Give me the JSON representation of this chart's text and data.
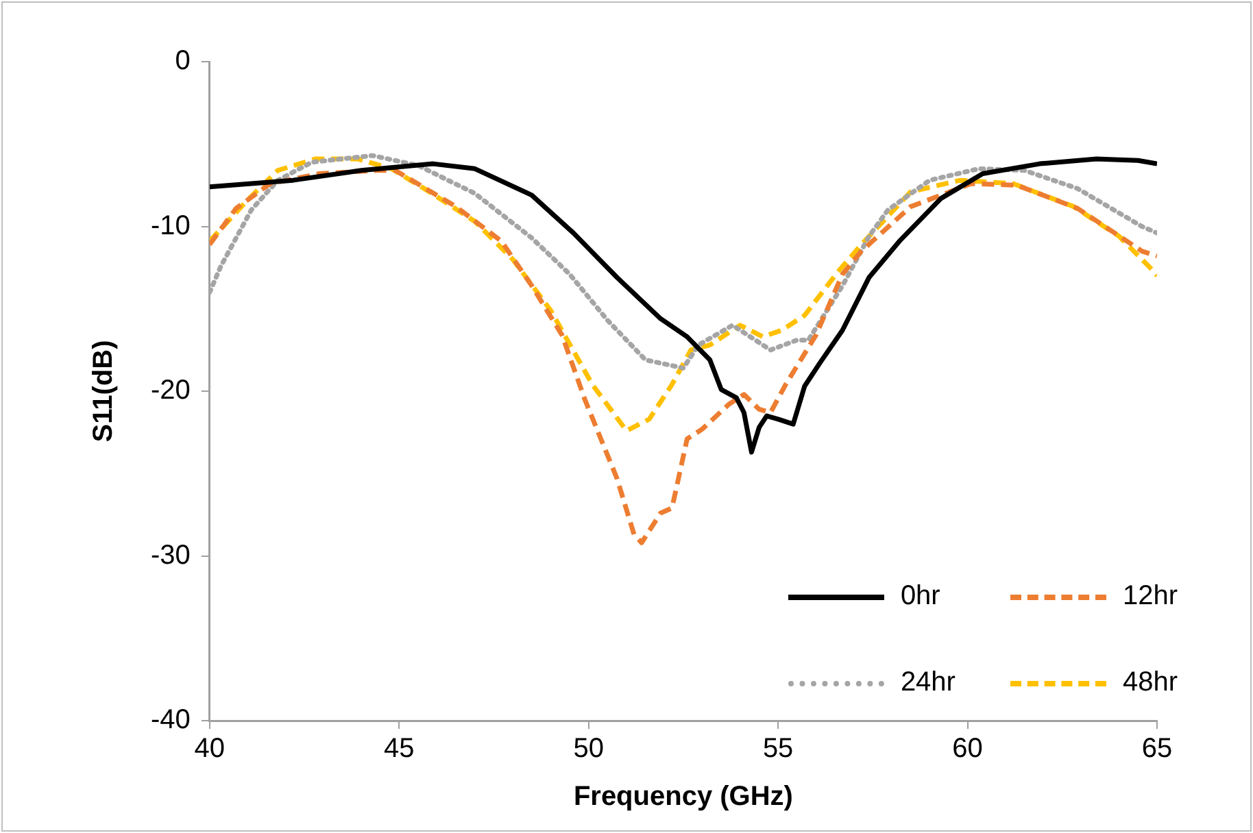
{
  "chart_data": {
    "type": "line",
    "xlabel": "Frequency (GHz)",
    "ylabel": "S11(dB)",
    "xlim": [
      40,
      65
    ],
    "xticks": [
      40,
      45,
      50,
      55,
      60,
      65
    ],
    "ylim": [
      -40,
      0
    ],
    "yticks": [
      -40,
      -30,
      -20,
      -10,
      0
    ],
    "grid": false,
    "legend": "bottom right",
    "marker": "none",
    "series": [
      {
        "name": "0hr",
        "color": "#000000",
        "line_style": "solid",
        "x": [
          40,
          42.2,
          44,
          45.9,
          47,
          48.5,
          49.6,
          50.75,
          51.9,
          52.6,
          53.2,
          53.5,
          53.9,
          54.1,
          54.3,
          54.5,
          54.7,
          55,
          55.4,
          55.7,
          56.1,
          56.7,
          57.4,
          58.2,
          59.3,
          60.4,
          61.9,
          63.4,
          64.5,
          65
        ],
        "values": [
          -7.6,
          -7.2,
          -6.6,
          -6.2,
          -6.5,
          -8.1,
          -10.4,
          -13.1,
          -15.6,
          -16.7,
          -18.1,
          -19.9,
          -20.4,
          -21.3,
          -23.7,
          -22.2,
          -21.5,
          -21.7,
          -22,
          -19.7,
          -18.3,
          -16.3,
          -13.1,
          -10.9,
          -8.3,
          -6.8,
          -6.2,
          -5.9,
          -6,
          -6.2
        ]
      },
      {
        "name": "12hr",
        "color": "#ed7d31",
        "line_style": "dashed",
        "x": [
          40,
          40.7,
          41.6,
          42.9,
          44.4,
          44.9,
          46.5,
          47.7,
          48.5,
          49.3,
          49.9,
          50.75,
          51.2,
          51.4,
          51.9,
          52.2,
          52.6,
          53,
          53.7,
          54.1,
          54.5,
          54.8,
          55.2,
          56,
          56.7,
          57.2,
          58.5,
          60.1,
          61.3,
          62.9,
          64.6,
          65
        ],
        "values": [
          -11.1,
          -8.9,
          -7.4,
          -6.8,
          -6.6,
          -6.6,
          -8.8,
          -10.9,
          -13.6,
          -16.6,
          -20.5,
          -25.3,
          -28.7,
          -29.2,
          -27.4,
          -27.1,
          -22.9,
          -22.3,
          -20.8,
          -20.2,
          -21.1,
          -21.3,
          -19.6,
          -16.6,
          -12.9,
          -11.5,
          -8.8,
          -7.4,
          -7.5,
          -8.9,
          -11.5,
          -11.8
        ]
      },
      {
        "name": "24hr",
        "color": "#a5a5a5",
        "line_style": "dotted",
        "x": [
          40,
          40.3,
          41.1,
          41.8,
          42.7,
          44.3,
          45.5,
          47,
          48.5,
          49.5,
          50.5,
          51.5,
          52.5,
          52.9,
          53.8,
          54.8,
          55.5,
          55.8,
          56.7,
          57.4,
          57.9,
          59,
          60.3,
          61.5,
          62.9,
          64.6,
          65
        ],
        "values": [
          -14,
          -12.4,
          -9,
          -7.2,
          -6.1,
          -5.7,
          -6.3,
          -8,
          -10.7,
          -12.9,
          -15.7,
          -18.1,
          -18.6,
          -17.2,
          -16,
          -17.5,
          -16.9,
          -16.9,
          -13.6,
          -10.6,
          -9,
          -7.2,
          -6.5,
          -6.6,
          -7.7,
          -10,
          -10.4
        ]
      },
      {
        "name": "48hr",
        "color": "#ffc000",
        "line_style": "dashed",
        "x": [
          40,
          41,
          41.8,
          42.8,
          43.9,
          44.8,
          45.8,
          47,
          48,
          49,
          50.1,
          51,
          51.6,
          52.2,
          52.7,
          53.2,
          54,
          54.6,
          55.1,
          55.7,
          56.6,
          57.2,
          58.5,
          59.8,
          61.2,
          62.8,
          64,
          64.9,
          65
        ],
        "values": [
          -10.9,
          -8.4,
          -6.6,
          -5.9,
          -5.9,
          -6.5,
          -7.9,
          -9.7,
          -12,
          -15.1,
          -19.6,
          -22.4,
          -21.7,
          -19.6,
          -17.5,
          -17.2,
          -16,
          -16.7,
          -16.3,
          -15.4,
          -12.7,
          -11.1,
          -7.9,
          -7.2,
          -7.4,
          -8.8,
          -10.6,
          -12.7,
          -13
        ]
      }
    ]
  }
}
